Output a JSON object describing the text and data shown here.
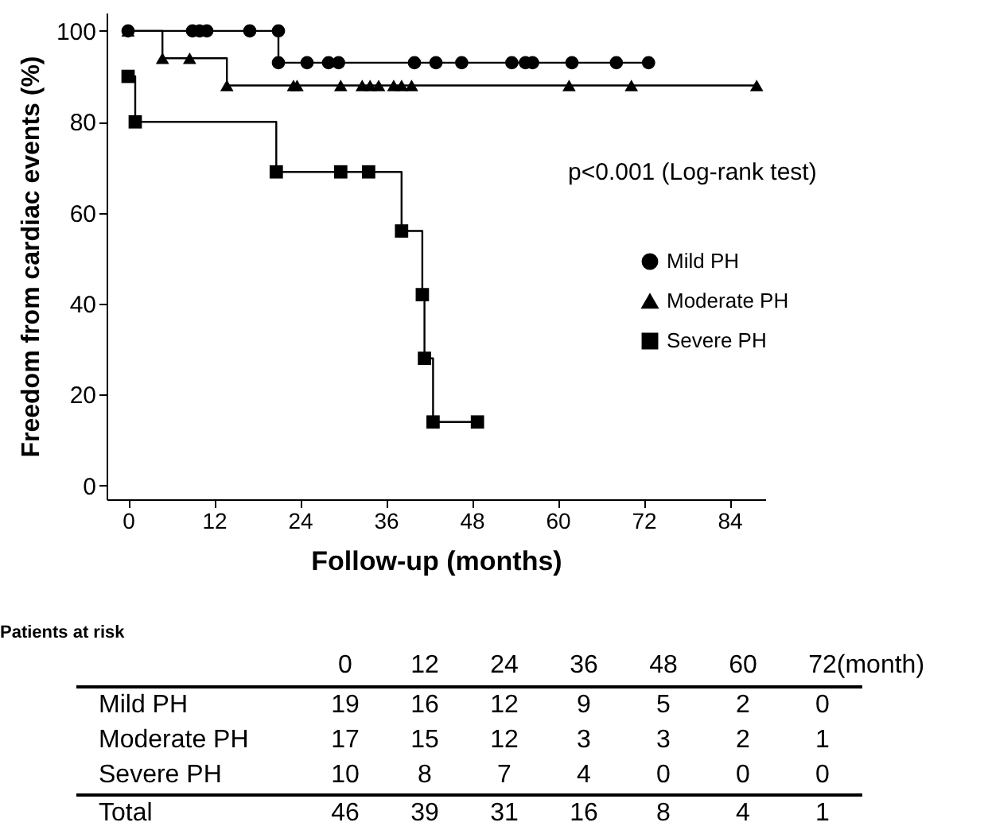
{
  "chart_data": {
    "type": "step",
    "xlabel": "Follow-up (months)",
    "ylabel": "Freedom from cardiac events (%)",
    "xlim": [
      -3,
      89
    ],
    "xticks": [
      0,
      12,
      24,
      36,
      48,
      60,
      72,
      84
    ],
    "ylim": [
      -3,
      104
    ],
    "yticks": [
      0,
      20,
      40,
      60,
      80,
      100
    ],
    "legend": "right",
    "series": [
      {
        "name": "Mild PH",
        "color": "#000000",
        "marker": "circle",
        "x": [
          0,
          9,
          10,
          11,
          17,
          21,
          21,
          25,
          28,
          29.4,
          40,
          43,
          46.6,
          53.6,
          55.5,
          56.5,
          62,
          68.2,
          72.7
        ],
        "values": [
          100,
          100,
          100,
          100,
          100,
          100,
          93,
          93,
          93,
          93,
          93,
          93,
          93,
          93,
          93,
          93,
          93,
          93,
          93
        ]
      },
      {
        "name": "Moderate PH",
        "color": "#000000",
        "marker": "triangle",
        "x": [
          0,
          4.8,
          8.6,
          13.8,
          23.1,
          23.6,
          29.7,
          32.7,
          33.8,
          35,
          37.1,
          38.2,
          39.6,
          61.6,
          70.3,
          87.8
        ],
        "values": [
          100,
          94,
          94,
          88,
          88,
          88,
          88,
          88,
          88,
          88,
          88,
          88,
          88,
          88,
          88,
          88
        ]
      },
      {
        "name": "Severe PH",
        "color": "#000000",
        "marker": "square",
        "x": [
          0,
          1,
          20.7,
          29.7,
          33.6,
          38.2,
          41.1,
          41.4,
          42.6,
          48.8
        ],
        "values": [
          90,
          80,
          69,
          69,
          69,
          56,
          42,
          28,
          14,
          14
        ]
      }
    ],
    "annotations": [
      "p<0.001 (Log-rank test)",
      "Patients at risk",
      "0",
      "12",
      "24",
      "36",
      "48",
      "60",
      "72",
      "(month)",
      "Mild PH",
      "19",
      "16",
      "12",
      "9",
      "5",
      "2",
      "0",
      "Moderate PH",
      "17",
      "15",
      "12",
      "3",
      "3",
      "2",
      "1",
      "Severe PH",
      "10",
      "8",
      "7",
      "4",
      "0",
      "0",
      "0",
      "Total",
      "46",
      "39",
      "31",
      "16",
      "8",
      "4",
      "1"
    ]
  }
}
